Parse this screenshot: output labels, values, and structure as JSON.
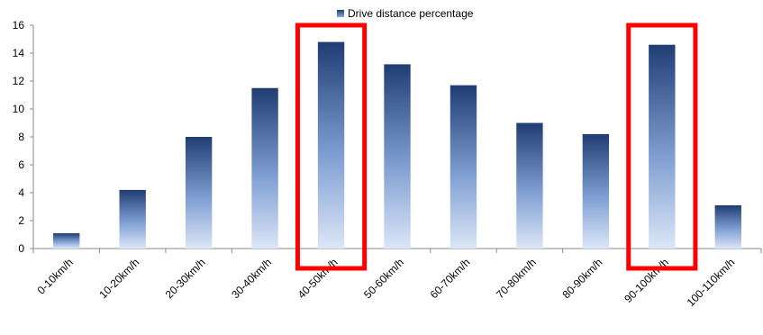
{
  "chart_data": {
    "type": "bar",
    "title": "",
    "xlabel": "",
    "ylabel": "",
    "categories": [
      "0-10km/h",
      "10-20km/h",
      "20-30km/h",
      "30-40km/h",
      "40-50km/h",
      "50-60km/h",
      "60-70km/h",
      "70-80km/h",
      "80-90km/h",
      "90-100km/h",
      "100-110km/h"
    ],
    "series": [
      {
        "name": "Drive distance percentage",
        "values": [
          1.1,
          4.2,
          8.0,
          11.5,
          14.8,
          13.2,
          11.7,
          9.0,
          8.2,
          14.6,
          3.1
        ]
      }
    ],
    "ylim": [
      0,
      16
    ],
    "yticks": [
      0,
      2,
      4,
      6,
      8,
      10,
      12,
      14,
      16
    ],
    "grid": false,
    "legend_position": "top-center",
    "highlighted_categories": [
      "40-50km/h",
      "90-100km/h"
    ],
    "colors": {
      "bar_top": "#1f3d73",
      "bar_mid": "#7f9fd2",
      "bar_bottom": "#dce6f7",
      "highlight_box": "#ff0000",
      "axis": "#8a8a8a"
    }
  }
}
